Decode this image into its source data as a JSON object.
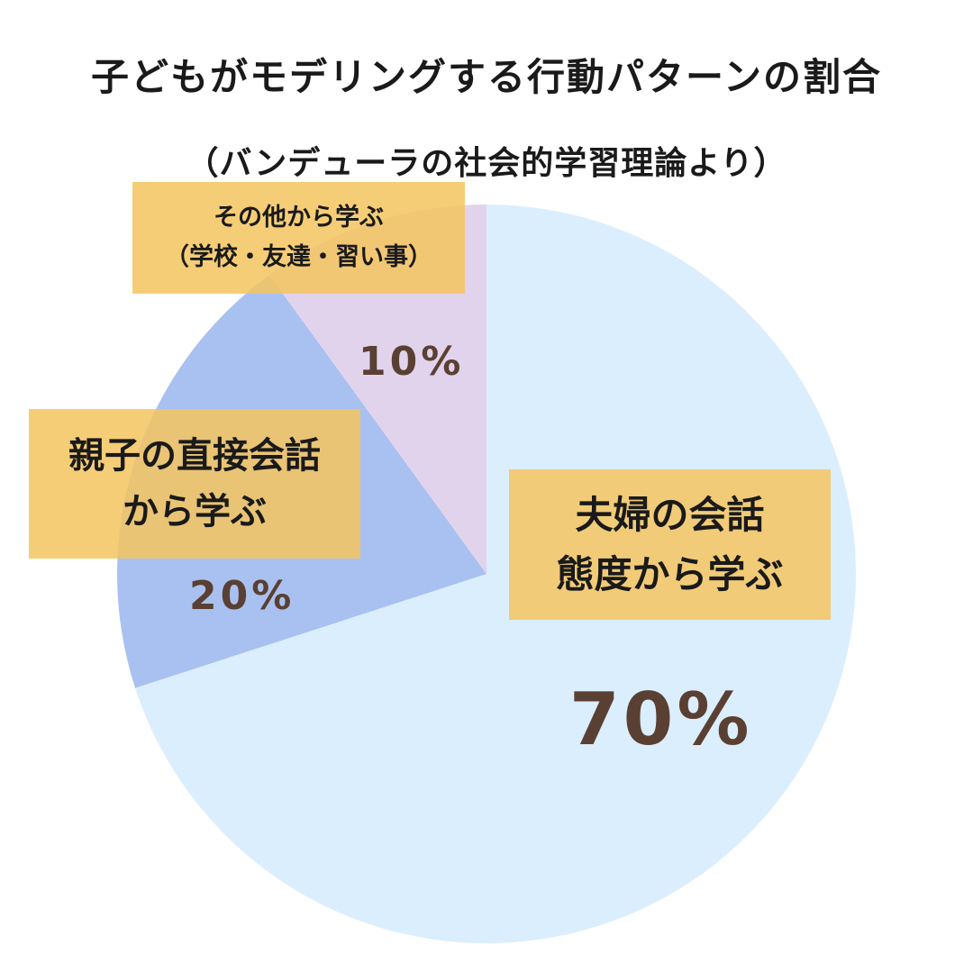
{
  "chart_data": {
    "type": "pie",
    "title": "子どもがモデリングする行動パターンの割合",
    "subtitle": "（バンデューラの社会的学習理論より）",
    "slices": [
      {
        "label_lines": [
          "夫婦の会話",
          "態度から学ぶ"
        ],
        "value": 70,
        "value_label": "70%",
        "color": "#dbeefd"
      },
      {
        "label_lines": [
          "親子の直接会話",
          "から学ぶ"
        ],
        "value": 20,
        "value_label": "20%",
        "color": "#a9c1f0"
      },
      {
        "label_lines": [
          "その他から学ぶ",
          "（学校・友達・習い事）"
        ],
        "value": 10,
        "value_label": "10%",
        "color": "#e2d3ec"
      }
    ]
  }
}
